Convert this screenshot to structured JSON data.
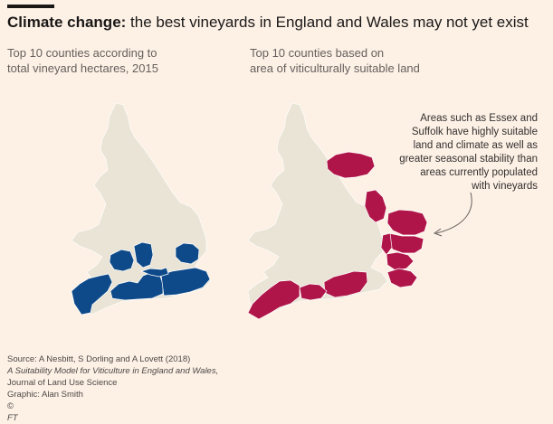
{
  "headline": {
    "bold": "Climate change:",
    "rest": " the best vineyards in England and Wales may not yet exist"
  },
  "left_panel": {
    "subtitle_line1": "Top 10 counties according to",
    "subtitle_line2": "total vineyard hectares, 2015",
    "highlight_color": "#0e4a8a"
  },
  "right_panel": {
    "subtitle_line1": "Top 10 counties based on",
    "subtitle_line2": "area of viticulturally suitable land",
    "highlight_color": "#b0154a"
  },
  "land_color": "#e9e4d6",
  "annotation": {
    "line1": "Areas such as Essex and",
    "line2": "Suffolk have highly suitable",
    "line3": "land and climate as well as",
    "line4": "greater seasonal stability than",
    "line5": "areas currently populated",
    "line6": "with vineyards"
  },
  "footer": {
    "source_prefix": "Source: A Nesbitt, S Dorling and A Lovett (2018) ",
    "source_title": "A Suitability Model for Viticulture in England and Wales,",
    "source_journal": "Journal of Land Use Science",
    "graphic": "Graphic: Alan Smith",
    "copyright_symbol": "©",
    "copyright": "FT"
  }
}
